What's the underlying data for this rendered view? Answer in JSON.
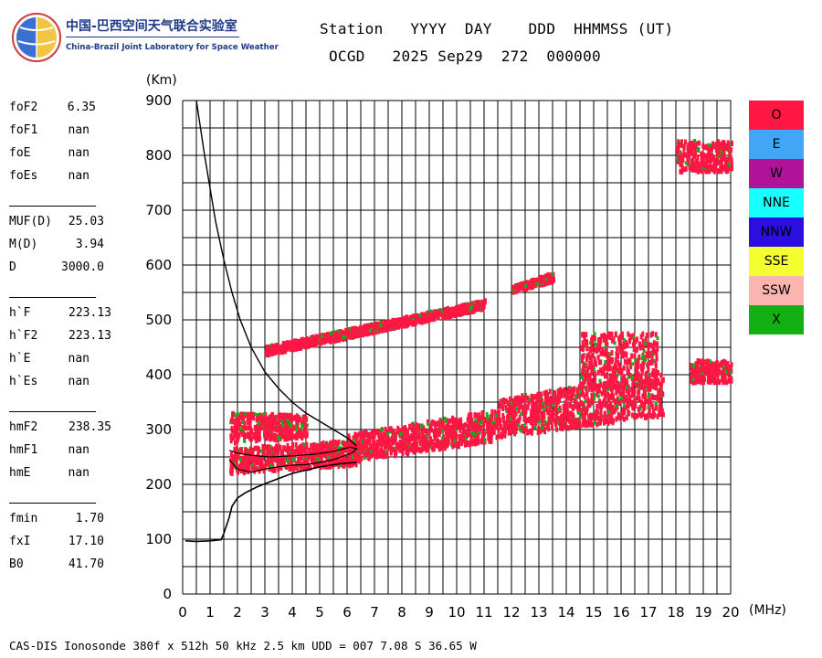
{
  "logo": {
    "title_cn": "中国-巴西空间天气联合实验室",
    "title_en": "China-Brazil Joint Laboratory for Space Weather"
  },
  "header": {
    "line1": "Station   YYYY  DAY    DDD  HHMMSS (UT)",
    "line2": "OCGD   2025 Sep29  272  000000"
  },
  "params": [
    {
      "name": "foF2",
      "value": "6.35"
    },
    {
      "name": "foF1",
      "value": "nan"
    },
    {
      "name": "foE",
      "value": "nan"
    },
    {
      "name": "foEs",
      "value": "nan"
    },
    {
      "name": "MUF(D)",
      "value": "25.03"
    },
    {
      "name": "M(D)",
      "value": "3.94"
    },
    {
      "name": "D",
      "value": "3000.0"
    },
    {
      "name": "h`F",
      "value": "223.13"
    },
    {
      "name": "h`F2",
      "value": "223.13"
    },
    {
      "name": "h`E",
      "value": "nan"
    },
    {
      "name": "h`Es",
      "value": "nan"
    },
    {
      "name": "hmF2",
      "value": "238.35"
    },
    {
      "name": "hmF1",
      "value": "nan"
    },
    {
      "name": "hmE",
      "value": "nan"
    },
    {
      "name": "fmin",
      "value": "1.70"
    },
    {
      "name": "fxI",
      "value": "17.10"
    },
    {
      "name": "B0",
      "value": "41.70"
    }
  ],
  "footer": "CAS-DIS Ionosonde 380f x 512h 50 kHz 2.5 km UDD = 007 7.08 S 36.65 W",
  "legend": [
    {
      "label": "O",
      "color": "#ff1744"
    },
    {
      "label": "E",
      "color": "#42a5f5"
    },
    {
      "label": "W",
      "color": "#b0129a"
    },
    {
      "label": "NNE",
      "color": "#18ffff"
    },
    {
      "label": "NNW",
      "color": "#2a0fe0"
    },
    {
      "label": "SSE",
      "color": "#f5ff30"
    },
    {
      "label": "SSW",
      "color": "#fbb4ae"
    },
    {
      "label": "X",
      "color": "#12b012"
    }
  ],
  "chart_data": {
    "type": "scatter",
    "xlabel": "(MHz)",
    "ylabel": "(Km)",
    "xlim": [
      0,
      20
    ],
    "ylim": [
      0,
      900
    ],
    "xticks": [
      0,
      1,
      2,
      3,
      4,
      5,
      6,
      7,
      8,
      9,
      10,
      11,
      12,
      13,
      14,
      15,
      16,
      17,
      18,
      19,
      20
    ],
    "yticks": [
      0,
      100,
      200,
      300,
      400,
      500,
      600,
      700,
      800,
      900
    ],
    "grid": true,
    "colors": {
      "O": "#ff1744",
      "X": "#12b012",
      "profile": "#000000"
    },
    "echo_regions": [
      {
        "name": "F-trace lower",
        "mode": "O",
        "f_from": 1.7,
        "f_to": 6.4,
        "h_from_low": 225,
        "h_from_high": 270,
        "h_to_low": 240,
        "h_to_high": 285
      },
      {
        "name": "F-trace upper",
        "mode": "O",
        "f_from": 1.7,
        "f_to": 4.5,
        "h_from_low": 280,
        "h_from_high": 335,
        "h_to_low": 290,
        "h_to_high": 330
      },
      {
        "name": "F-spread",
        "mode": "O",
        "f_from": 6.0,
        "f_to": 11.5,
        "h_from_low": 245,
        "h_from_high": 295,
        "h_to_low": 285,
        "h_to_high": 340
      },
      {
        "name": "F-spread high freq",
        "mode": "O",
        "f_from": 11.5,
        "f_to": 17.5,
        "h_from_low": 290,
        "h_from_high": 360,
        "h_to_low": 330,
        "h_to_high": 410
      },
      {
        "name": "F-spread cluster",
        "mode": "O",
        "f_from": 14.5,
        "f_to": 17.3,
        "h_from_low": 380,
        "h_from_high": 480,
        "h_to_low": 380,
        "h_to_high": 480
      },
      {
        "name": "multihop 2F",
        "mode": "O",
        "f_from": 3.0,
        "f_to": 11.0,
        "h_from_low": 440,
        "h_from_high": 455,
        "h_to_low": 525,
        "h_to_high": 540
      },
      {
        "name": "multihop tail",
        "mode": "O",
        "f_from": 12.0,
        "f_to": 13.5,
        "h_from_low": 555,
        "h_from_high": 565,
        "h_to_low": 575,
        "h_to_high": 590
      },
      {
        "name": "high echoes",
        "mode": "O",
        "f_from": 18.0,
        "f_to": 20.0,
        "h_from_low": 775,
        "h_from_high": 830,
        "h_to_low": 775,
        "h_to_high": 830
      },
      {
        "name": "far band",
        "mode": "O",
        "f_from": 18.5,
        "f_to": 20.0,
        "h_from_low": 390,
        "h_from_high": 430,
        "h_to_low": 390,
        "h_to_high": 430
      }
    ],
    "profile": {
      "x": [
        0.1,
        0.5,
        1.0,
        1.4,
        1.5,
        1.55,
        1.6,
        1.7,
        1.8,
        2.0,
        2.3,
        2.7,
        3.2,
        4.0,
        5.0,
        5.8,
        6.35
      ],
      "y": [
        97,
        96,
        97,
        99,
        110,
        118,
        125,
        140,
        160,
        175,
        185,
        195,
        205,
        220,
        232,
        238,
        240
      ]
    },
    "trace_line": {
      "x": [
        1.7,
        2.0,
        2.5,
        3.0,
        3.5,
        4.0,
        4.5,
        5.0,
        5.5,
        5.9,
        6.2,
        6.35,
        6.1,
        5.5,
        4.8,
        4.0,
        3.2,
        2.5,
        2.0,
        1.7
      ],
      "y": [
        245,
        228,
        222,
        228,
        232,
        235,
        236,
        240,
        245,
        252,
        258,
        265,
        268,
        260,
        255,
        252,
        250,
        253,
        257,
        262
      ]
    },
    "steep_curve": {
      "x": [
        0.5,
        0.8,
        1.0,
        1.2,
        1.5,
        1.8,
        2.1,
        2.5,
        3.0,
        3.5,
        4.0,
        4.5,
        5.0,
        5.5,
        6.0,
        6.35
      ],
      "y": [
        900,
        800,
        740,
        680,
        610,
        550,
        500,
        450,
        405,
        375,
        350,
        330,
        315,
        300,
        285,
        270
      ]
    }
  }
}
